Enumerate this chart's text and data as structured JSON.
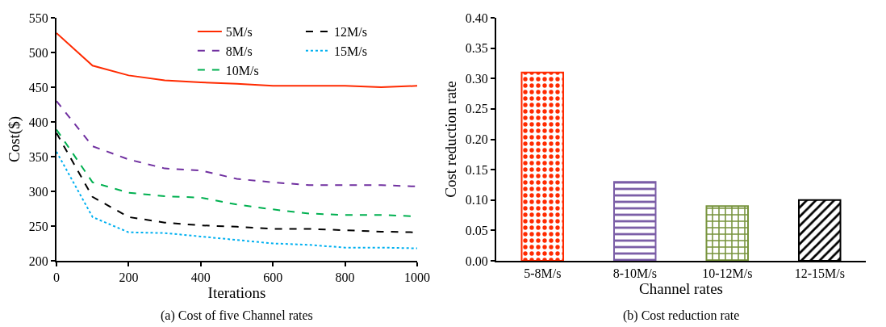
{
  "chart_data": [
    {
      "type": "line",
      "xlabel": "Iterations",
      "ylabel": "Cost($)",
      "annotations": [
        "(a) Cost of five Channel rates"
      ],
      "x": [
        0,
        100,
        200,
        300,
        400,
        500,
        600,
        700,
        800,
        900,
        1000
      ],
      "xlim": [
        0,
        1000
      ],
      "xticks": [
        0,
        200,
        400,
        600,
        800,
        1000
      ],
      "ylim": [
        200,
        550
      ],
      "yticks": [
        200,
        250,
        300,
        350,
        400,
        450,
        500,
        550
      ],
      "grid": false,
      "legend": "top",
      "marker": "none",
      "series": [
        {
          "name": "5M/s",
          "color": "#ff2a00",
          "line_style": "solid",
          "values": [
            528,
            481,
            467,
            460,
            457,
            455,
            452,
            452,
            452,
            450,
            452
          ]
        },
        {
          "name": "8M/s",
          "color": "#7030a0",
          "line_style": "dashed",
          "values": [
            430,
            365,
            346,
            333,
            330,
            318,
            313,
            309,
            309,
            309,
            307
          ]
        },
        {
          "name": "10M/s",
          "color": "#00b050",
          "line_style": "dashed",
          "values": [
            389,
            313,
            298,
            293,
            291,
            281,
            274,
            268,
            266,
            266,
            264
          ]
        },
        {
          "name": "12M/s",
          "color": "#000000",
          "line_style": "dashed",
          "values": [
            384,
            292,
            263,
            255,
            251,
            249,
            246,
            246,
            244,
            242,
            241
          ]
        },
        {
          "name": "15M/s",
          "color": "#00b0f0",
          "line_style": "dotted",
          "values": [
            357,
            263,
            241,
            240,
            235,
            230,
            225,
            223,
            219,
            219,
            218
          ]
        }
      ]
    },
    {
      "type": "bar",
      "xlabel": "Channel rates",
      "ylabel": "Cost reduction rate",
      "annotations": [
        "(b) Cost reduction rate"
      ],
      "categories": [
        "5-8M/s",
        "8-10M/s",
        "10-12M/s",
        "12-15M/s"
      ],
      "values": [
        0.31,
        0.13,
        0.09,
        0.1
      ],
      "colors": [
        "#ff2a00",
        "#7b5ea7",
        "#77933c",
        "#000000"
      ],
      "ylim": [
        0,
        0.4
      ],
      "yticks": [
        {
          "value": 0,
          "label": "0.00"
        },
        {
          "value": 0.05,
          "label": "0.05"
        },
        {
          "value": 0.1,
          "label": "0.10"
        },
        {
          "value": 0.15,
          "label": "0.15"
        },
        {
          "value": 0.2,
          "label": "0.20"
        },
        {
          "value": 0.25,
          "label": "0.25"
        },
        {
          "value": 0.3,
          "label": "0.30"
        },
        {
          "value": 0.35,
          "label": "0.35"
        },
        {
          "value": 0.4,
          "label": "0.40"
        }
      ],
      "grid": false,
      "legend": false
    }
  ]
}
